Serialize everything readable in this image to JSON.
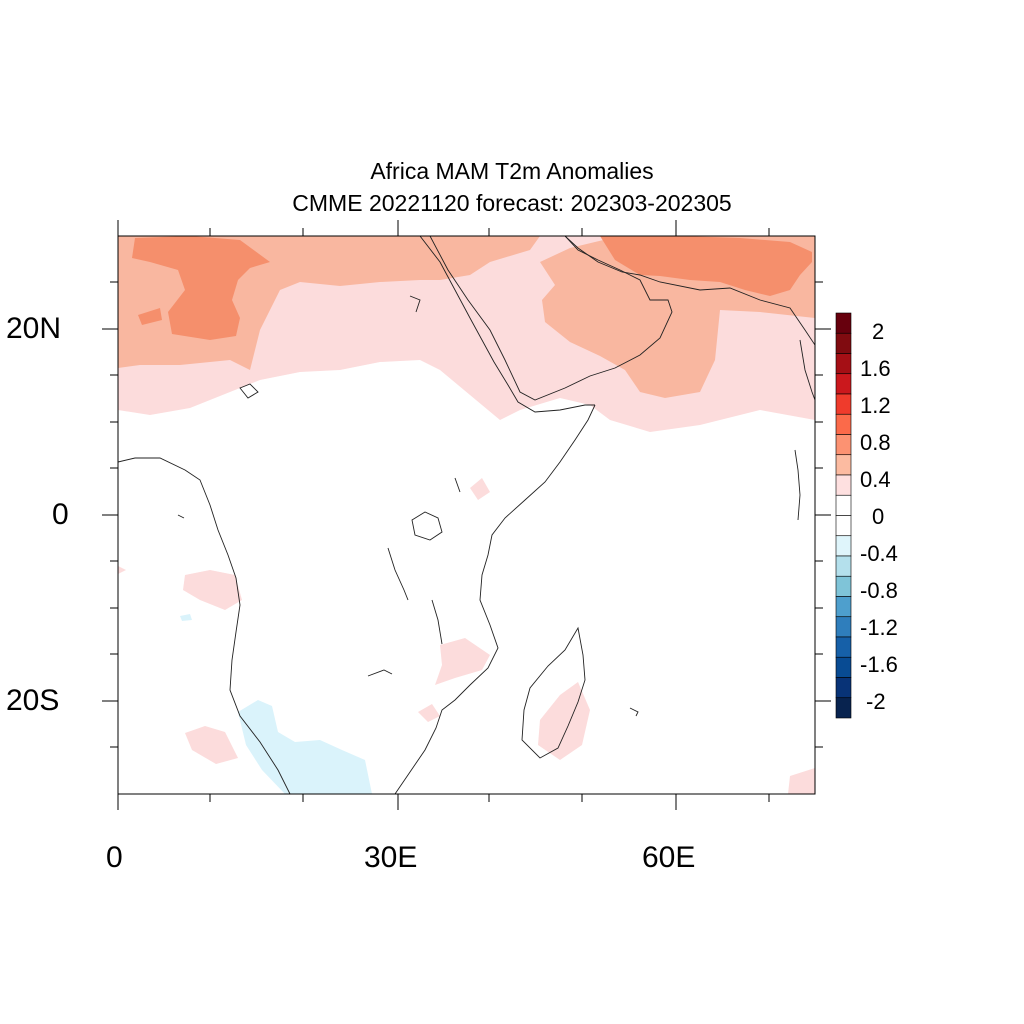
{
  "figure": {
    "title_line1": "Africa MAM T2m Anomalies",
    "title_line2": "CMME 20221120 forecast: 202303-202305"
  },
  "map": {
    "lon_range": [
      0,
      75
    ],
    "lat_range": [
      -30,
      30
    ],
    "lon_ticks": [
      {
        "value": 0,
        "label": "0"
      },
      {
        "value": 30,
        "label": "30E"
      },
      {
        "value": 60,
        "label": "60E"
      }
    ],
    "lat_ticks": [
      {
        "value": 20,
        "label": "20N"
      },
      {
        "value": 0,
        "label": "0"
      },
      {
        "value": -20,
        "label": "20S"
      }
    ]
  },
  "colorbar": {
    "labels": [
      "2",
      "1.6",
      "1.2",
      "0.8",
      "0.4",
      "0",
      "-0.4",
      "-0.8",
      "-1.2",
      "-1.6",
      "-2"
    ],
    "colors_top_to_bottom": [
      "#67000d",
      "#800b10",
      "#a50f15",
      "#cb181d",
      "#ef3b2c",
      "#fb6a4a",
      "#fc9272",
      "#fcbba1",
      "#fee0e0",
      "#ffffff",
      "#ffffff",
      "#dff5fb",
      "#b4e0ec",
      "#7fc4d8",
      "#4e9fcd",
      "#2f7ebc",
      "#1660a8",
      "#084b93",
      "#083377",
      "#08234f"
    ]
  },
  "colors": {
    "anom_0_4": "#fcdcdc",
    "anom_4_8": "#f9b7a0",
    "anom_8_12": "#f58f6c",
    "anom_neg_0_4": "#daf3fb"
  }
}
